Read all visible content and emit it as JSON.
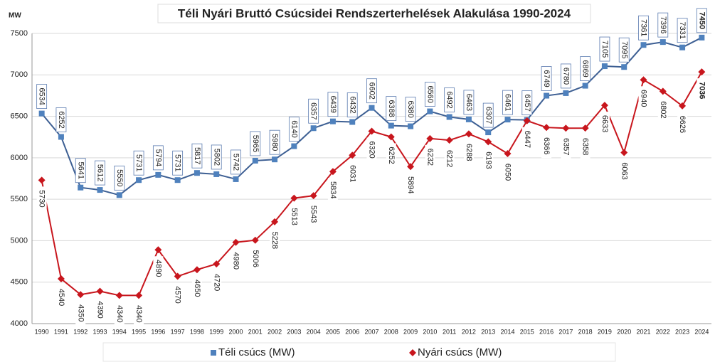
{
  "chart_data": {
    "type": "line",
    "title": "Téli Nyári Bruttó Csúcsidei Rendszerterhelések Alakulása 1990-2024",
    "y_label": "MW",
    "categories": [
      "1990",
      "1991",
      "1992",
      "1993",
      "1994",
      "1995",
      "1996",
      "1997",
      "1998",
      "1999",
      "2000",
      "2001",
      "2002",
      "2003",
      "2004",
      "2005",
      "2006",
      "2007",
      "2008",
      "2009",
      "2010",
      "2011",
      "2012",
      "2013",
      "2014",
      "2015",
      "2016",
      "2017",
      "2018",
      "2019",
      "2020",
      "2021",
      "2022",
      "2023",
      "2024"
    ],
    "series": [
      {
        "name": "Téli csúcs (MW)",
        "color": "#3d5f93",
        "marker": "square",
        "values": [
          6534,
          6252,
          5641,
          5612,
          5550,
          5731,
          5794,
          5731,
          5817,
          5802,
          5742,
          5965,
          5980,
          6140,
          6357,
          6439,
          6432,
          6602,
          6388,
          6380,
          6560,
          6492,
          6463,
          6307,
          6461,
          6457,
          6749,
          6780,
          6869,
          7105,
          7095,
          7361,
          7396,
          7331,
          7450
        ]
      },
      {
        "name": "Nyári csúcs (MW)",
        "color": "#c8161d",
        "marker": "diamond",
        "values": [
          5730,
          4540,
          4350,
          4390,
          4340,
          4340,
          4890,
          4570,
          4650,
          4720,
          4980,
          5006,
          5228,
          5513,
          5543,
          5834,
          6031,
          6320,
          6252,
          5894,
          6232,
          6212,
          6288,
          6193,
          6050,
          6447,
          6366,
          6357,
          6358,
          6633,
          6063,
          6940,
          6802,
          6626,
          7036
        ]
      }
    ],
    "ylim": [
      4000,
      7500
    ],
    "yticks": [
      4000,
      4500,
      5000,
      5500,
      6000,
      6500,
      7000,
      7500
    ],
    "grid": true,
    "legend": "bottom"
  }
}
